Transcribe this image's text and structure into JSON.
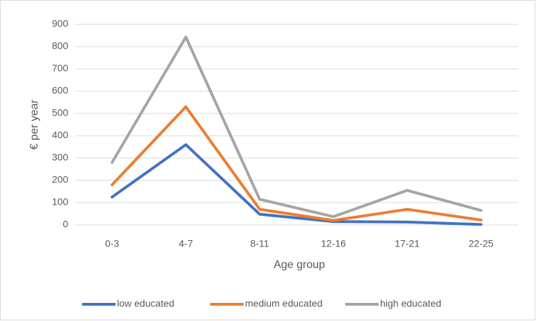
{
  "chart_data": {
    "type": "line",
    "x_label": "Age group",
    "y_label": "€ per year",
    "categories": [
      "0-3",
      "4-7",
      "8-11",
      "12-16",
      "17-21",
      "22-25"
    ],
    "series": [
      {
        "name": "low educated",
        "color": "#4472c4",
        "values": [
          125,
          360,
          48,
          15,
          13,
          2
        ]
      },
      {
        "name": "medium educated",
        "color": "#ed7d31",
        "values": [
          180,
          530,
          70,
          20,
          70,
          22
        ]
      },
      {
        "name": "high educated",
        "color": "#a5a5a5",
        "values": [
          280,
          843,
          115,
          37,
          155,
          65
        ]
      }
    ],
    "ylim": [
      0,
      900
    ],
    "yticks": [
      0,
      100,
      200,
      300,
      400,
      500,
      600,
      700,
      800,
      900
    ],
    "grid": true,
    "legend": "bottom"
  }
}
